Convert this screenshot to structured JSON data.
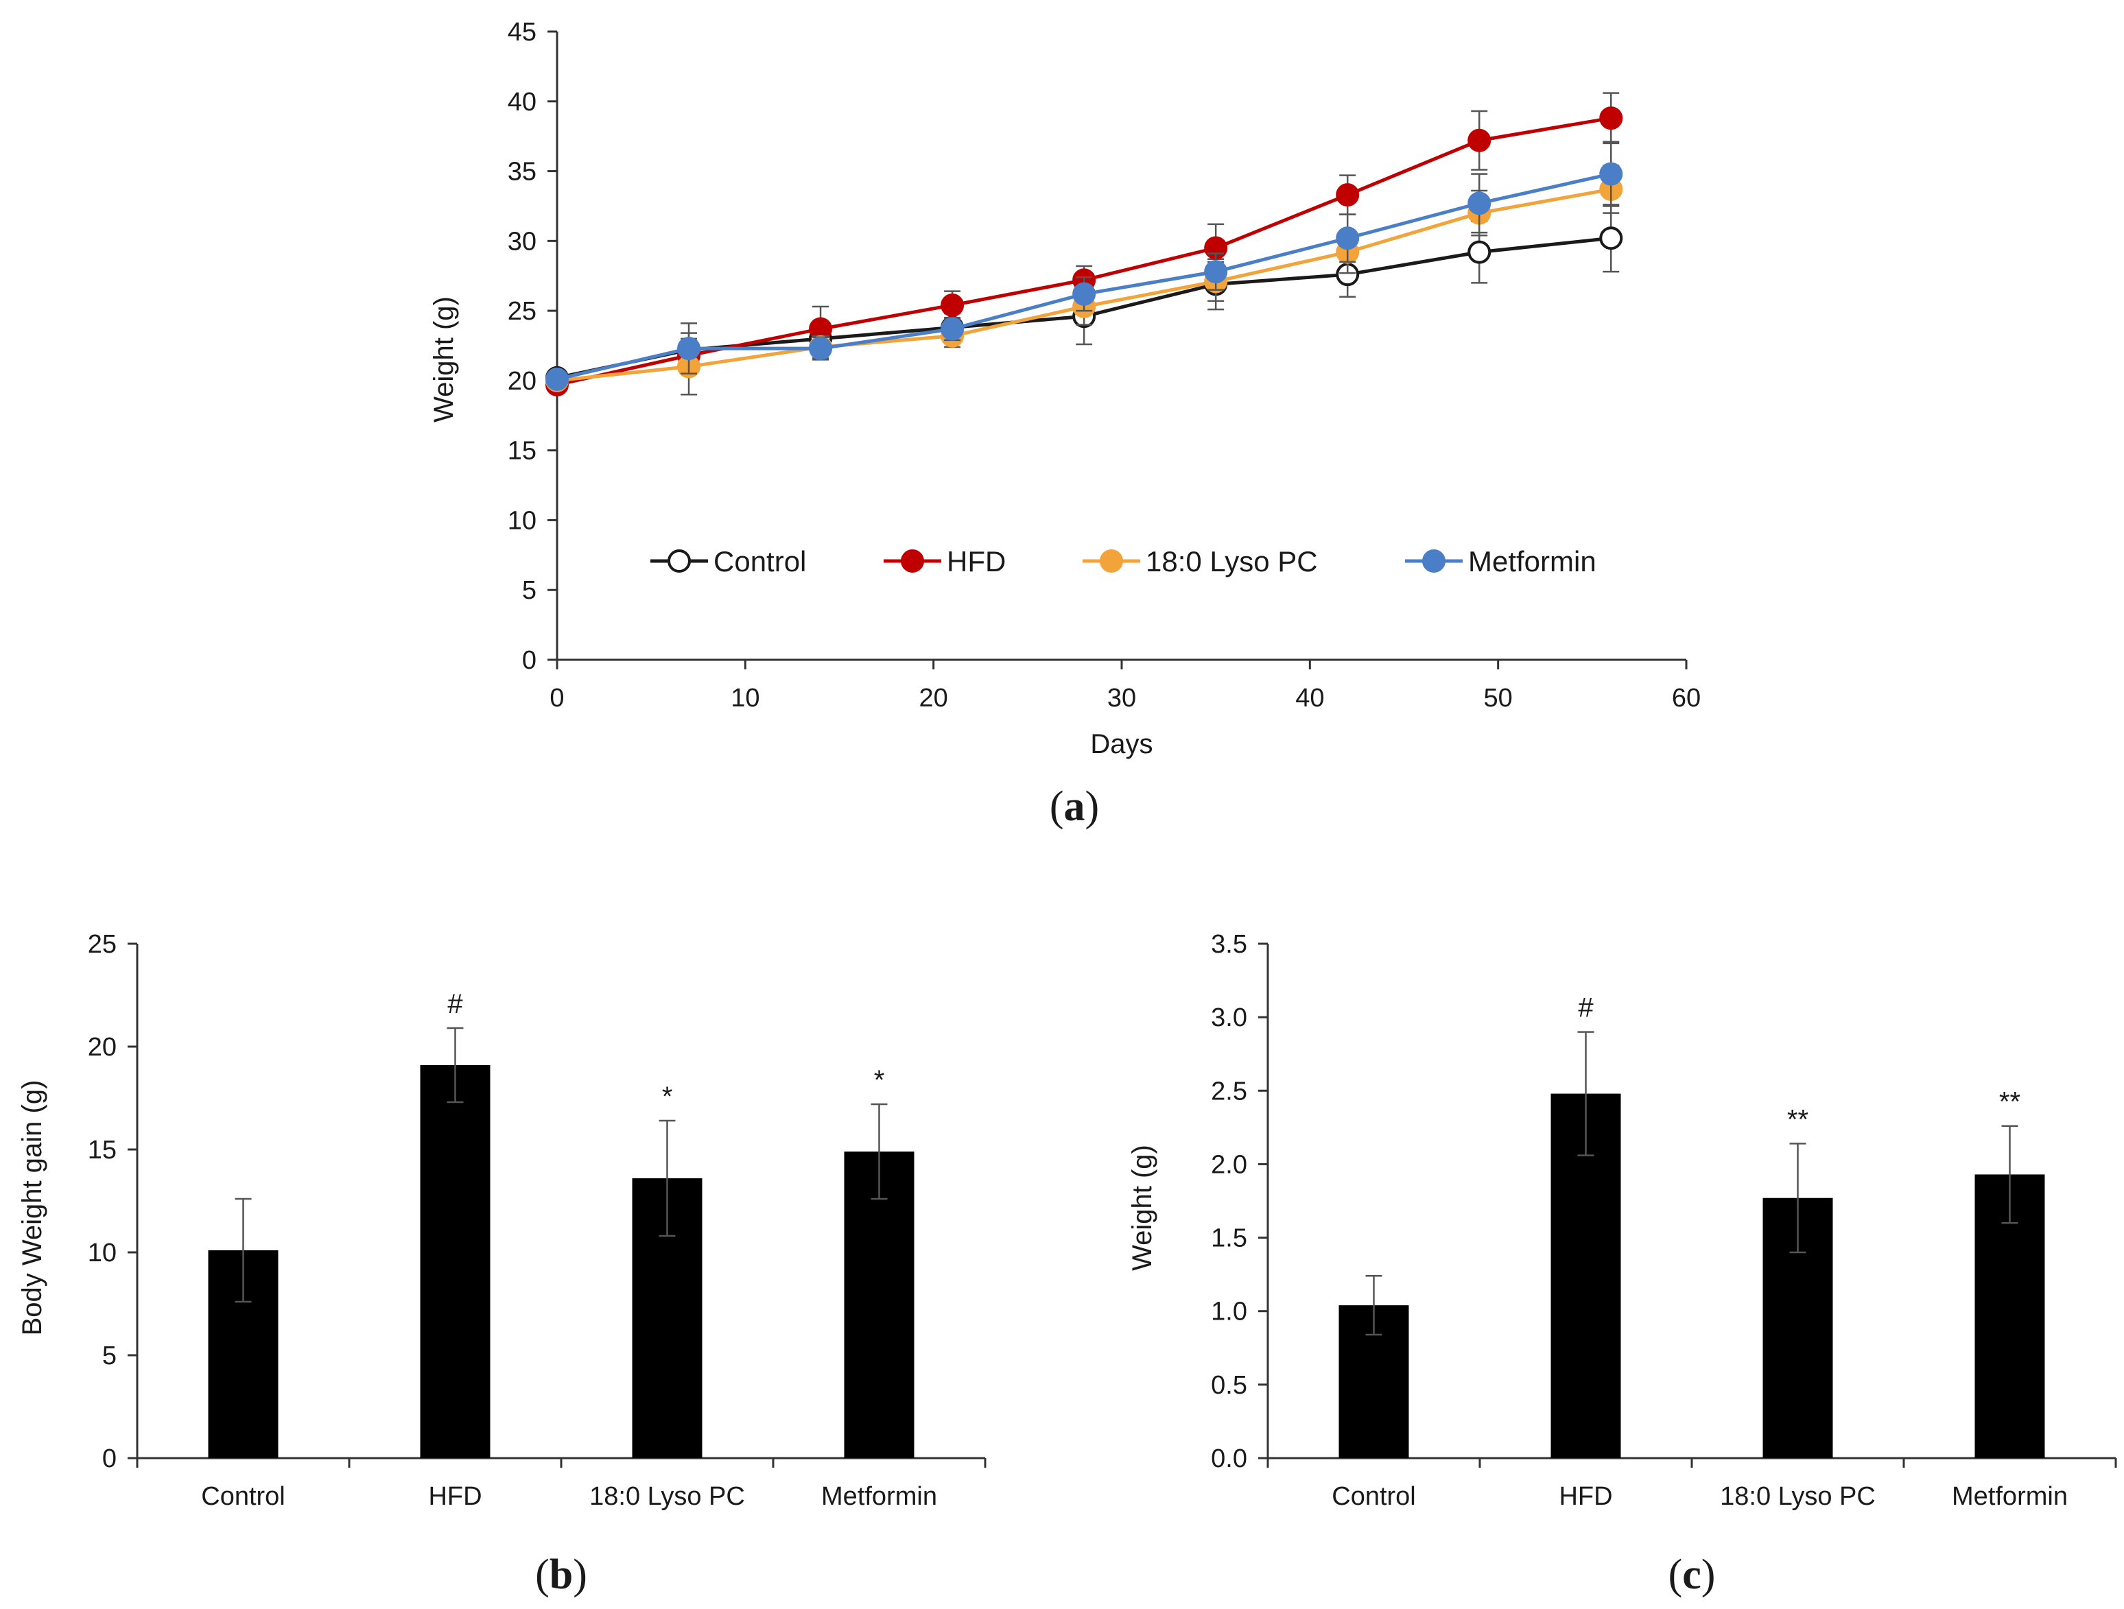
{
  "chart_data": [
    {
      "id": "a",
      "type": "line",
      "panel_label": "a",
      "xlabel": "Days",
      "ylabel": "Weight (g)",
      "xlim": [
        0,
        60
      ],
      "ylim": [
        0,
        45
      ],
      "xticks": [
        0,
        10,
        20,
        30,
        40,
        50,
        60
      ],
      "yticks": [
        0,
        5,
        10,
        15,
        20,
        25,
        30,
        35,
        40,
        45
      ],
      "grid": false,
      "legend_position": "bottom-center inside",
      "x": [
        0,
        7,
        14,
        21,
        28,
        35,
        42,
        49,
        56
      ],
      "series": [
        {
          "name": "Control",
          "color": "#1a1a1a",
          "marker": "open-circle",
          "values": [
            20.2,
            22.2,
            23.0,
            23.8,
            24.6,
            26.9,
            27.6,
            29.2,
            30.2
          ],
          "error": [
            0.5,
            1.2,
            1.1,
            1.0,
            2.0,
            1.8,
            1.6,
            2.2,
            2.4
          ]
        },
        {
          "name": "HFD",
          "color": "#c00000",
          "marker": "filled-circle",
          "values": [
            19.7,
            21.8,
            23.7,
            25.4,
            27.2,
            29.5,
            33.3,
            37.2,
            38.8
          ],
          "error": [
            0.5,
            1.0,
            1.6,
            1.0,
            1.0,
            1.7,
            1.4,
            2.1,
            1.8
          ]
        },
        {
          "name": "18:0 Lyso PC",
          "color": "#f2a33a",
          "marker": "filled-circle",
          "values": [
            20.0,
            21.0,
            22.4,
            23.2,
            25.3,
            27.1,
            29.2,
            32.0,
            33.7
          ],
          "error": [
            0.5,
            2.0,
            0.8,
            0.8,
            1.3,
            1.4,
            1.5,
            1.6,
            1.7
          ]
        },
        {
          "name": "Metformin",
          "color": "#4a7fc8",
          "marker": "filled-circle",
          "values": [
            20.1,
            22.3,
            22.3,
            23.7,
            26.2,
            27.8,
            30.2,
            32.7,
            34.8
          ],
          "error": [
            0.5,
            1.8,
            0.8,
            0.8,
            1.2,
            1.3,
            1.7,
            2.1,
            2.3
          ]
        }
      ]
    },
    {
      "id": "b",
      "type": "bar",
      "panel_label": "b",
      "xlabel": "",
      "ylabel": "Body Weight gain (g)",
      "ylim": [
        0,
        25
      ],
      "yticks": [
        0,
        5,
        10,
        15,
        20,
        25
      ],
      "grid": false,
      "color": "#000000",
      "categories": [
        "Control",
        "HFD",
        "18:0 Lyso PC",
        "Metformin"
      ],
      "values": [
        10.1,
        19.1,
        13.6,
        14.9
      ],
      "error": [
        2.5,
        1.8,
        2.8,
        2.3
      ],
      "annotations": [
        "",
        "#",
        "*",
        "*"
      ]
    },
    {
      "id": "c",
      "type": "bar",
      "panel_label": "c",
      "xlabel": "",
      "ylabel": "Weight (g)",
      "ylim": [
        0,
        3.5
      ],
      "yticks": [
        "0.0",
        "0.5",
        "1.0",
        "1.5",
        "2.0",
        "2.5",
        "3.0",
        "3.5"
      ],
      "grid": false,
      "color": "#000000",
      "categories": [
        "Control",
        "HFD",
        "18:0 Lyso PC",
        "Metformin"
      ],
      "values": [
        1.04,
        2.48,
        1.77,
        1.93
      ],
      "error": [
        0.2,
        0.42,
        0.37,
        0.33
      ],
      "annotations": [
        "",
        "#",
        "**",
        "**"
      ]
    }
  ]
}
